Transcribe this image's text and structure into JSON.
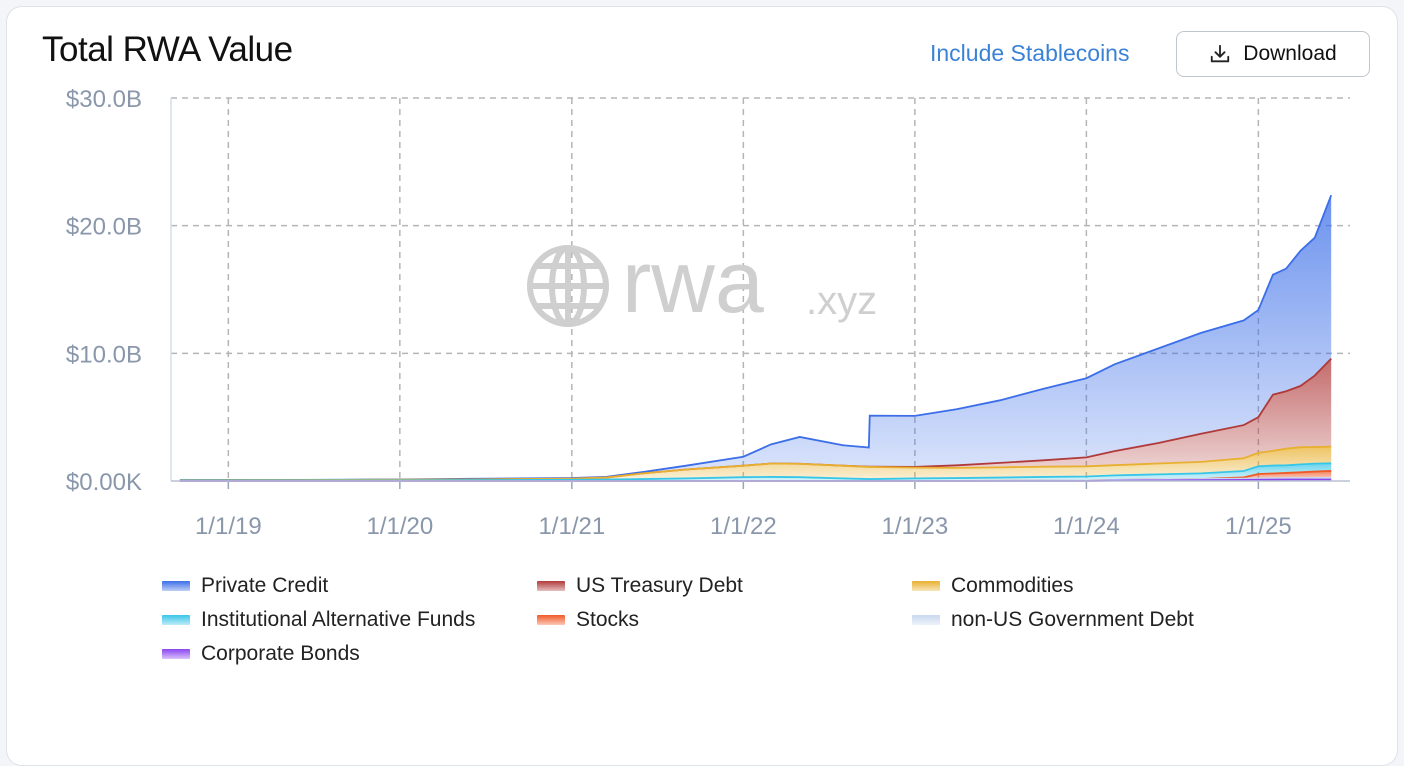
{
  "header": {
    "title": "Total RWA Value",
    "stablecoins_link": "Include Stablecoins",
    "download_label": "Download"
  },
  "watermark": {
    "text": "rwa",
    "suffix": ".xyz"
  },
  "chart_data": {
    "type": "area",
    "stacked": true,
    "title": "Total RWA Value",
    "xlabel": "",
    "ylabel": "",
    "x_ticks": [
      "1/1/19",
      "1/1/20",
      "1/1/21",
      "1/1/22",
      "1/1/23",
      "1/1/24",
      "1/1/25"
    ],
    "y_ticks": [
      "$0.00K",
      "$10.0B",
      "$20.0B",
      "$30.0B"
    ],
    "ylim": [
      0,
      30
    ],
    "y_unit": "billion USD",
    "xlim": [
      "2018-09-01",
      "2025-07-15"
    ],
    "grid": true,
    "legend_position": "bottom",
    "x": [
      "2018-09-20",
      "2019-06-01",
      "2020-01-01",
      "2020-06-01",
      "2021-01-01",
      "2021-03-15",
      "2021-06-01",
      "2021-09-01",
      "2022-01-01",
      "2022-03-01",
      "2022-05-01",
      "2022-08-01",
      "2022-09-25",
      "2022-09-27",
      "2023-01-01",
      "2023-04-01",
      "2023-07-01",
      "2023-10-01",
      "2024-01-01",
      "2024-03-01",
      "2024-06-01",
      "2024-09-01",
      "2024-12-01",
      "2025-01-01",
      "2025-02-01",
      "2025-03-01",
      "2025-04-01",
      "2025-05-01",
      "2025-06-05"
    ],
    "series": [
      {
        "name": "Corporate Bonds",
        "color": "#8b45f0",
        "values": [
          0,
          0,
          0,
          0,
          0,
          0,
          0,
          0,
          0,
          0,
          0,
          0,
          0,
          0,
          0,
          0,
          0,
          0,
          0,
          0.03,
          0.05,
          0.07,
          0.09,
          0.1,
          0.11,
          0.12,
          0.12,
          0.12,
          0.12
        ]
      },
      {
        "name": "non-US Government Debt",
        "color": "#c8d8ee",
        "values": [
          0,
          0,
          0,
          0,
          0,
          0,
          0,
          0,
          0,
          0,
          0,
          0,
          0,
          0,
          0,
          0.01,
          0.02,
          0.04,
          0.05,
          0.06,
          0.07,
          0.08,
          0.09,
          0.1,
          0.1,
          0.11,
          0.11,
          0.12,
          0.12
        ]
      },
      {
        "name": "Stocks",
        "color": "#f05a28",
        "values": [
          0,
          0,
          0,
          0,
          0,
          0,
          0,
          0,
          0,
          0,
          0,
          0,
          0,
          0,
          0,
          0,
          0,
          0,
          0,
          0,
          0,
          0,
          0.1,
          0.35,
          0.38,
          0.4,
          0.45,
          0.5,
          0.55
        ]
      },
      {
        "name": "Institutional Alternative Funds",
        "color": "#38c6e8",
        "values": [
          0.05,
          0.05,
          0.05,
          0.07,
          0.1,
          0.12,
          0.15,
          0.2,
          0.3,
          0.32,
          0.3,
          0.2,
          0.15,
          0.15,
          0.2,
          0.22,
          0.25,
          0.28,
          0.3,
          0.35,
          0.4,
          0.45,
          0.5,
          0.6,
          0.62,
          0.6,
          0.62,
          0.62,
          0.6
        ]
      },
      {
        "name": "Commodities",
        "color": "#e8b030",
        "values": [
          0.02,
          0.03,
          0.05,
          0.05,
          0.08,
          0.15,
          0.45,
          0.7,
          0.9,
          1.05,
          1.05,
          1.0,
          0.95,
          0.95,
          0.85,
          0.8,
          0.8,
          0.8,
          0.8,
          0.8,
          0.85,
          0.9,
          1.0,
          1.05,
          1.15,
          1.3,
          1.35,
          1.3,
          1.3
        ]
      },
      {
        "name": "US Treasury Debt",
        "color": "#b03a3a",
        "values": [
          0,
          0,
          0,
          0,
          0,
          0,
          0,
          0,
          0,
          0,
          0,
          0,
          0.02,
          0.02,
          0.05,
          0.2,
          0.35,
          0.5,
          0.7,
          1.1,
          1.6,
          2.2,
          2.6,
          2.8,
          4.4,
          4.5,
          4.8,
          5.6,
          6.9
        ]
      },
      {
        "name": "Private Credit",
        "color": "#3b6ee8",
        "values": [
          0,
          0.01,
          0.02,
          0.05,
          0.05,
          0.05,
          0.1,
          0.3,
          0.7,
          1.5,
          2.1,
          1.6,
          1.5,
          4.0,
          4.0,
          4.4,
          4.9,
          5.6,
          6.2,
          6.8,
          7.4,
          7.9,
          8.2,
          8.4,
          9.4,
          9.6,
          10.6,
          10.8,
          12.8
        ]
      }
    ]
  },
  "legend": [
    {
      "label": "Private Credit",
      "color": "#3b6ee8"
    },
    {
      "label": "US Treasury Debt",
      "color": "#b03a3a"
    },
    {
      "label": "Commodities",
      "color": "#e8b030"
    },
    {
      "label": "Institutional Alternative Funds",
      "color": "#38c6e8"
    },
    {
      "label": "Stocks",
      "color": "#f05a28"
    },
    {
      "label": "non-US Government Debt",
      "color": "#c8d8ee"
    },
    {
      "label": "Corporate Bonds",
      "color": "#8b45f0"
    }
  ]
}
